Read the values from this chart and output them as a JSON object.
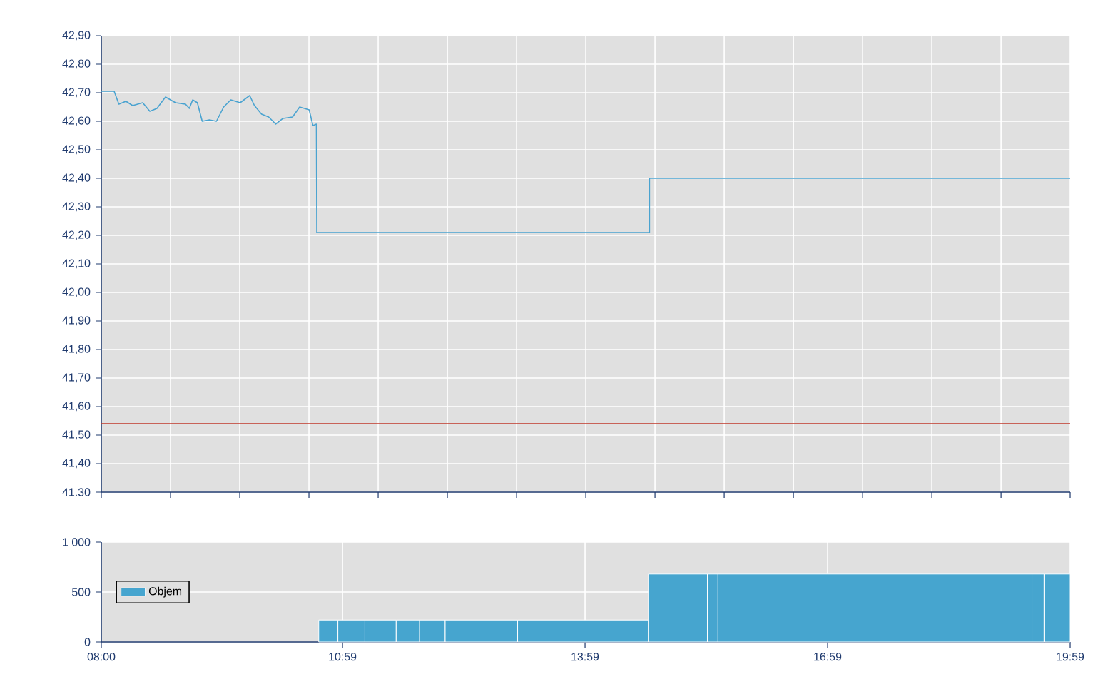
{
  "chart_data": [
    {
      "type": "line",
      "series": [
        {
          "color": "#4aa3d0",
          "x": [
            8.0,
            8.159,
            8.217,
            8.305,
            8.388,
            8.512,
            8.6,
            8.688,
            8.794,
            8.918,
            9.041,
            9.089,
            9.13,
            9.188,
            9.248,
            9.336,
            9.424,
            9.513,
            9.601,
            9.717,
            9.835,
            9.894,
            9.982,
            10.07,
            10.158,
            10.247,
            10.365,
            10.453,
            10.571,
            10.617,
            10.66,
            10.665,
            14.78,
            14.78,
            19.983
          ],
          "values": [
            42.705,
            42.705,
            42.66,
            42.67,
            42.655,
            42.665,
            42.635,
            42.645,
            42.685,
            42.665,
            42.66,
            42.645,
            42.675,
            42.665,
            42.6,
            42.605,
            42.6,
            42.65,
            42.675,
            42.665,
            42.69,
            42.655,
            42.625,
            42.615,
            42.59,
            42.61,
            42.615,
            42.65,
            42.64,
            42.585,
            42.59,
            42.21,
            42.21,
            42.4,
            42.4
          ]
        }
      ],
      "xlim": [
        8.0,
        19.983
      ],
      "xticks": [
        {
          "value": 8.0,
          "label": null
        },
        {
          "value": 8.856,
          "label": null
        },
        {
          "value": 9.712,
          "label": null
        },
        {
          "value": 10.568,
          "label": null
        },
        {
          "value": 11.424,
          "label": null
        },
        {
          "value": 12.28,
          "label": null
        },
        {
          "value": 13.136,
          "label": null
        },
        {
          "value": 13.992,
          "label": null
        },
        {
          "value": 14.848,
          "label": null
        },
        {
          "value": 15.704,
          "label": null
        },
        {
          "value": 16.56,
          "label": null
        },
        {
          "value": 17.416,
          "label": null
        },
        {
          "value": 18.272,
          "label": null
        },
        {
          "value": 19.128,
          "label": null
        },
        {
          "value": 19.983,
          "label": null
        }
      ],
      "ylim": [
        41.3,
        42.9
      ],
      "yticks": [
        {
          "value": 41.3,
          "label": "41.30"
        },
        {
          "value": 41.4,
          "label": "41,40"
        },
        {
          "value": 41.5,
          "label": "41,50"
        },
        {
          "value": 41.6,
          "label": "41,60"
        },
        {
          "value": 41.7,
          "label": "41,70"
        },
        {
          "value": 41.8,
          "label": "41,80"
        },
        {
          "value": 41.9,
          "label": "41,90"
        },
        {
          "value": 42.0,
          "label": "42,00"
        },
        {
          "value": 42.1,
          "label": "42,10"
        },
        {
          "value": 42.2,
          "label": "42,20"
        },
        {
          "value": 42.3,
          "label": "42,30"
        },
        {
          "value": 42.4,
          "label": "42,40"
        },
        {
          "value": 42.5,
          "label": "42,50"
        },
        {
          "value": 42.6,
          "label": "42,60"
        },
        {
          "value": 42.7,
          "label": "42,70"
        },
        {
          "value": 42.8,
          "label": "42,80"
        },
        {
          "value": 42.9,
          "label": "42,90"
        }
      ],
      "tick_labels": "y",
      "grid": true,
      "ref_lines": [
        {
          "axis": "y",
          "value": 41.54,
          "color": "#c0392b"
        }
      ]
    },
    {
      "type": "histogram",
      "bins": [
        10.689,
        10.926,
        11.26,
        11.647,
        11.937,
        12.253,
        13.149,
        14.766,
        15.496,
        15.627,
        19.511,
        19.66,
        19.983
      ],
      "series": [
        {
          "name": "Objem",
          "color": "#46a5cf",
          "values": [
            220,
            220,
            220,
            220,
            220,
            220,
            220,
            680,
            680,
            680,
            680,
            680
          ]
        }
      ],
      "xlim": [
        8.0,
        19.983
      ],
      "xticks": [
        {
          "value": 8.0,
          "label": "08:00"
        },
        {
          "value": 10.983,
          "label": "10:59"
        },
        {
          "value": 13.983,
          "label": "13:59"
        },
        {
          "value": 16.983,
          "label": "16:59"
        },
        {
          "value": 19.983,
          "label": "19:59"
        }
      ],
      "ylim": [
        0,
        1000
      ],
      "yticks": [
        0,
        500,
        {
          "value": 1000,
          "label": "1 000"
        }
      ],
      "grid": true,
      "legend": "left"
    }
  ]
}
